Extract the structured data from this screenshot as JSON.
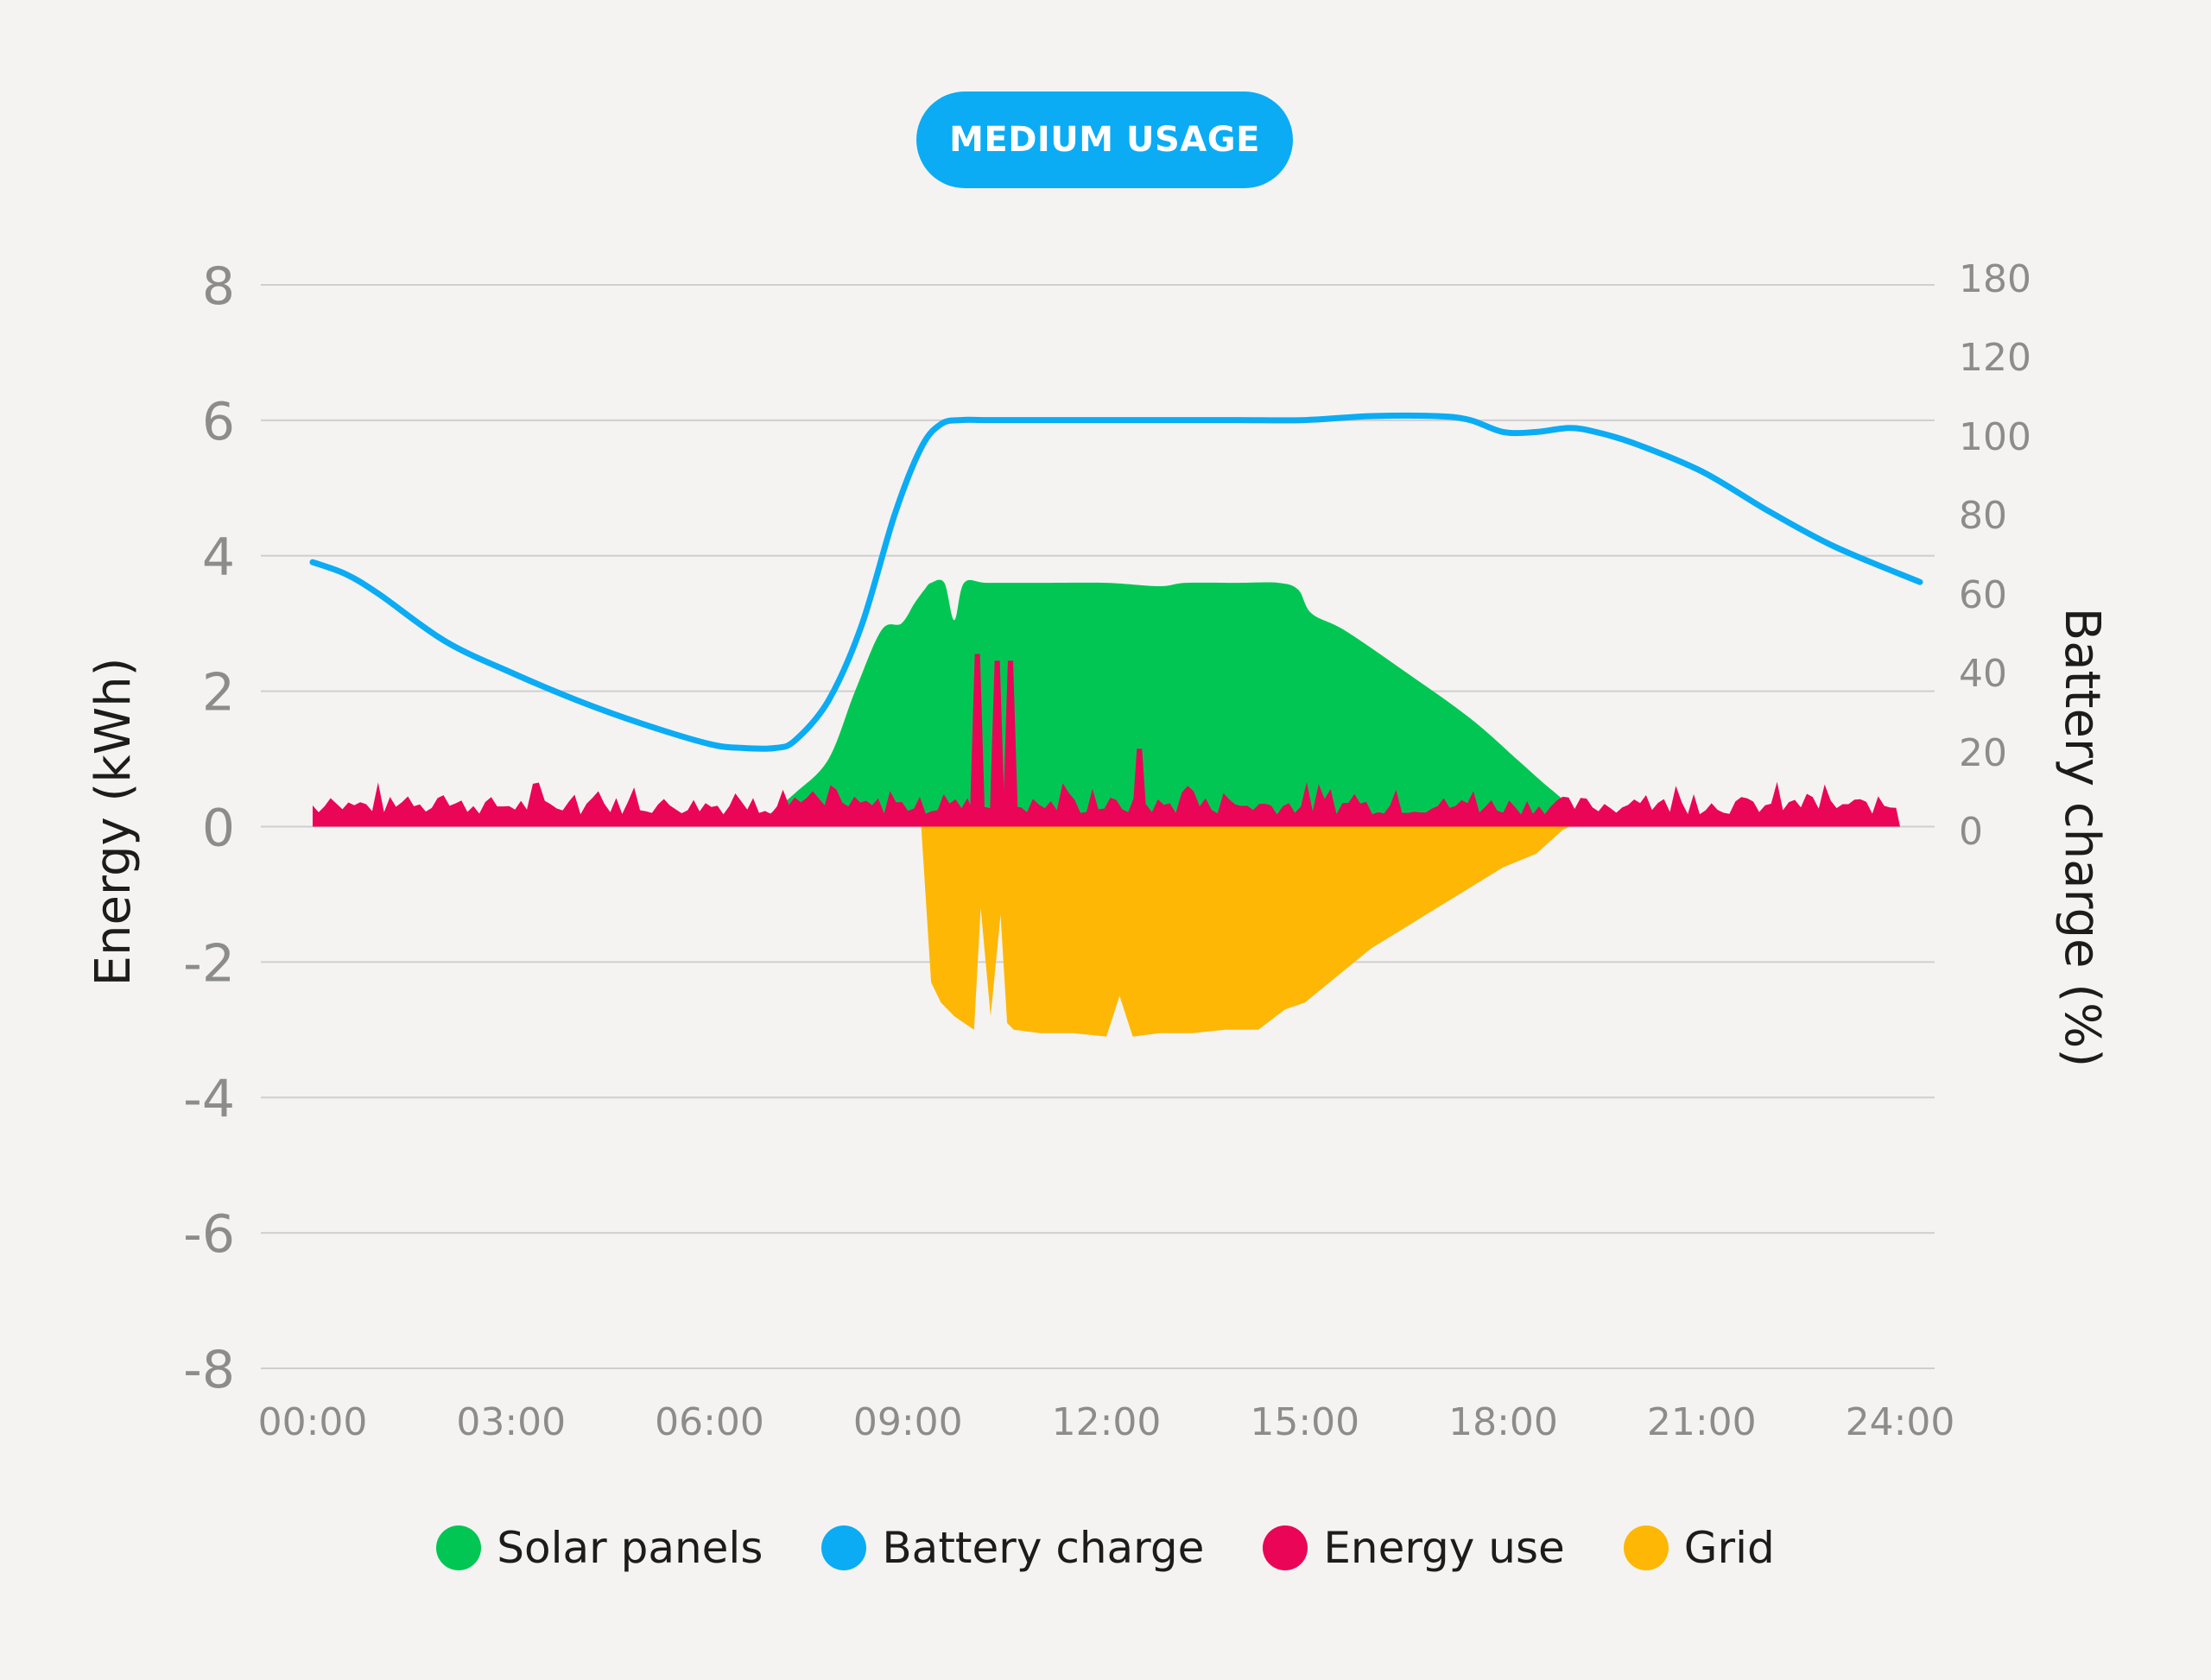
{
  "badge": {
    "label": "MEDIUM USAGE"
  },
  "colors": {
    "solar": "#02c653",
    "battery": "#0bacf4",
    "use": "#ea0557",
    "grid": "#feb704",
    "grid_line": "#cfcfcf",
    "tick": "#8c8c8c",
    "axis_title": "#1c1c1c"
  },
  "chart_data": {
    "type": "area",
    "ylabel": "Energy (kWh)",
    "y2label": "Battery charge (%)",
    "ylim": [
      -8,
      8
    ],
    "y_ticks": [
      8,
      6,
      4,
      2,
      0,
      -2,
      -4,
      -6,
      -8
    ],
    "y_tick_labels": [
      "8",
      "6",
      "4",
      "2",
      "0",
      "-2",
      "-4",
      "-6",
      "-8"
    ],
    "y2_ticks": [
      180,
      120,
      100,
      80,
      60,
      40,
      20,
      0
    ],
    "x_ticks": [
      0,
      3,
      6,
      9,
      12,
      15,
      18,
      21,
      24
    ],
    "x_tick_labels": [
      "00:00",
      "03:00",
      "06:00",
      "09:00",
      "12:00",
      "15:00",
      "18:00",
      "21:00",
      "24:00"
    ],
    "x_unit": "hour",
    "grid": true,
    "legend_position": "bottom",
    "series": [
      {
        "name": "Solar panels",
        "axis": "left",
        "x": [
          6.8,
          7.3,
          7.8,
          8.2,
          8.6,
          8.9,
          9.1,
          9.25,
          9.35,
          9.55,
          9.7,
          9.85,
          10.2,
          11,
          12,
          12.8,
          13.2,
          14,
          14.6,
          14.9,
          15.1,
          15.6,
          16.5,
          17.5,
          18.2,
          18.6,
          18.9,
          19.0
        ],
        "values": [
          0.1,
          0.5,
          1.0,
          2.0,
          2.9,
          3.0,
          3.3,
          3.5,
          3.6,
          3.6,
          3.05,
          3.6,
          3.6,
          3.6,
          3.6,
          3.55,
          3.6,
          3.6,
          3.6,
          3.5,
          3.15,
          2.9,
          2.3,
          1.6,
          1.0,
          0.65,
          0.4,
          0.25
        ]
      },
      {
        "name": "Battery charge",
        "axis": "right",
        "x": [
          0,
          0.5,
          1,
          2,
          3,
          4,
          5,
          6,
          6.5,
          7,
          7.3,
          7.8,
          8.3,
          8.8,
          9.2,
          9.5,
          9.8,
          10.2,
          11,
          12,
          13,
          14,
          15,
          16,
          17,
          17.5,
          18,
          18.5,
          19,
          19.4,
          20,
          21,
          22,
          23,
          24.3
        ],
        "values": [
          68,
          65,
          60,
          48,
          40,
          33,
          27,
          22,
          21,
          21,
          23,
          33,
          52,
          80,
          97,
          103,
          104,
          104,
          104,
          104,
          104,
          104,
          104,
          105,
          105,
          104,
          101,
          101,
          102,
          101,
          98,
          91,
          81,
          72,
          63
        ]
      },
      {
        "name": "Energy use",
        "axis": "left",
        "baseline": 0.3,
        "spikes": [
          {
            "x": 10.05,
            "value": 2.55
          },
          {
            "x": 10.35,
            "value": 2.45
          },
          {
            "x": 10.55,
            "value": 2.45
          },
          {
            "x": 12.5,
            "value": 1.15
          }
        ]
      },
      {
        "name": "Grid",
        "axis": "left",
        "x": [
          9.2,
          9.35,
          9.5,
          9.7,
          9.85,
          10.0,
          10.1,
          10.25,
          10.4,
          10.5,
          10.6,
          11.0,
          11.5,
          12.0,
          12.2,
          12.4,
          12.8,
          13.3,
          13.8,
          14.3,
          14.7,
          15.0,
          15.5,
          16.0,
          16.5,
          17.0,
          17.5,
          18.0,
          18.5,
          18.9,
          19.0
        ],
        "values": [
          0,
          -2.3,
          -2.6,
          -2.8,
          -2.9,
          -3.0,
          -1.2,
          -2.8,
          -1.3,
          -2.9,
          -3.0,
          -3.05,
          -3.05,
          -3.1,
          -2.5,
          -3.1,
          -3.05,
          -3.05,
          -3.0,
          -3.0,
          -2.7,
          -2.6,
          -2.2,
          -1.8,
          -1.5,
          -1.2,
          -0.9,
          -0.6,
          -0.4,
          -0.05,
          0
        ]
      }
    ]
  }
}
